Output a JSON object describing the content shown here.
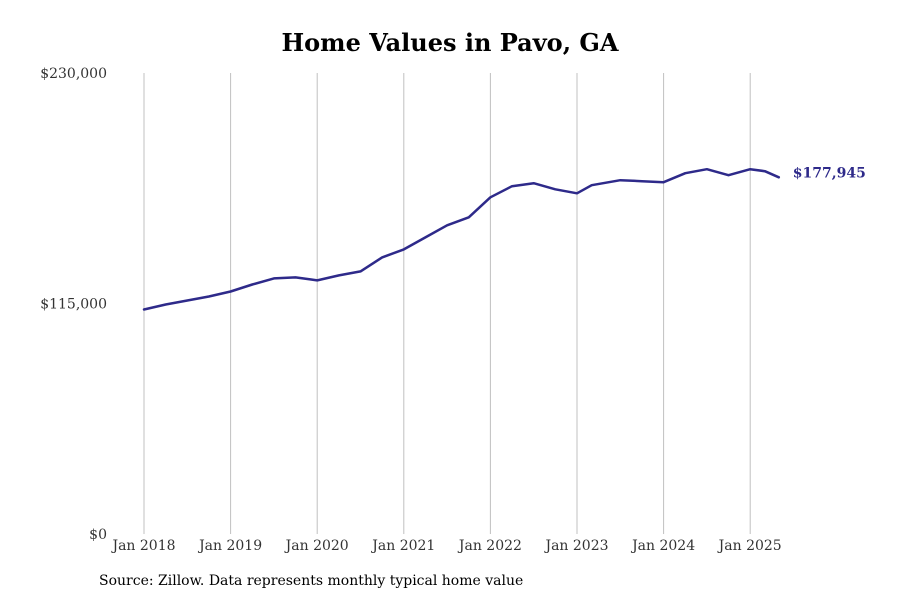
{
  "chart_data": {
    "type": "line",
    "title": "Home Values in Pavo, GA",
    "source": "Source: Zillow. Data represents monthly typical home value",
    "xlabel": "",
    "ylabel": "",
    "ylim": [
      0,
      230000
    ],
    "y_ticks": [
      {
        "value": 0,
        "label": "$0"
      },
      {
        "value": 115000,
        "label": "$115,000"
      },
      {
        "value": 230000,
        "label": "$230,000"
      }
    ],
    "x_ticks": [
      {
        "value": 2018.0,
        "label": "Jan 2018"
      },
      {
        "value": 2019.0,
        "label": "Jan 2019"
      },
      {
        "value": 2020.0,
        "label": "Jan 2020"
      },
      {
        "value": 2021.0,
        "label": "Jan 2021"
      },
      {
        "value": 2022.0,
        "label": "Jan 2022"
      },
      {
        "value": 2023.0,
        "label": "Jan 2023"
      },
      {
        "value": 2024.0,
        "label": "Jan 2024"
      },
      {
        "value": 2025.0,
        "label": "Jan 2025"
      }
    ],
    "grid": {
      "vertical": true,
      "horizontal": false
    },
    "line_color": "#2e2a8a",
    "end_label": "$177,945",
    "series": [
      {
        "name": "",
        "x": [
          2018.0,
          2018.25,
          2018.5,
          2018.75,
          2019.0,
          2019.25,
          2019.5,
          2019.75,
          2019.92,
          2020.0,
          2020.25,
          2020.5,
          2020.75,
          2021.0,
          2021.25,
          2021.5,
          2021.75,
          2022.0,
          2022.25,
          2022.5,
          2022.75,
          2023.0,
          2023.17,
          2023.5,
          2023.75,
          2024.0,
          2024.25,
          2024.5,
          2024.75,
          2025.0,
          2025.17,
          2025.33
        ],
        "y": [
          112000,
          114500,
          116500,
          118500,
          121000,
          124500,
          127500,
          128000,
          127000,
          126500,
          129000,
          131000,
          138000,
          142000,
          148000,
          154000,
          158000,
          168000,
          173500,
          175000,
          172000,
          170000,
          174000,
          176500,
          176000,
          175500,
          180000,
          182000,
          179000,
          182000,
          181000,
          177945
        ]
      }
    ]
  }
}
